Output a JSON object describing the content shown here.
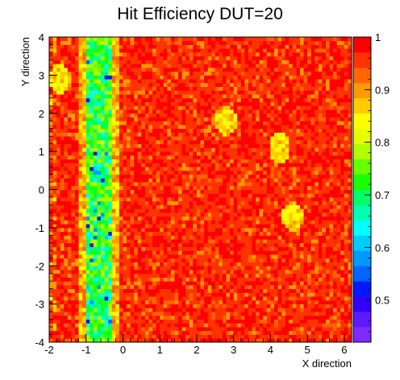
{
  "chart_data": {
    "type": "heatmap",
    "title": "Hit Efficiency DUT=20",
    "xlabel": "X direction",
    "ylabel": "Y direction",
    "xlim": [
      -2,
      6.2
    ],
    "ylim": [
      -4,
      4
    ],
    "x_ticks": [
      "-2",
      "-1",
      "0",
      "1",
      "2",
      "3",
      "4",
      "5",
      "6"
    ],
    "y_ticks": [
      "-4",
      "-3",
      "-2",
      "-1",
      "0",
      "1",
      "2",
      "3",
      "4"
    ],
    "zlim": [
      0.42,
      1.0
    ],
    "z_ticks": [
      "0.5",
      "0.6",
      "0.7",
      "0.8",
      "0.9",
      "1"
    ],
    "palette": [
      "#7f2aff",
      "#5b1aff",
      "#3200ff",
      "#0019ff",
      "#0066ff",
      "#0099ff",
      "#00ccff",
      "#00ffff",
      "#00ffb2",
      "#00ff66",
      "#19ff00",
      "#66ff00",
      "#b2ff00",
      "#e5ff00",
      "#ffff00",
      "#ffcc00",
      "#ff9900",
      "#ff6600",
      "#ff3300",
      "#ff0000"
    ],
    "bins": {
      "nx": 82,
      "ny": 80
    },
    "features": [
      {
        "label": "low-efficiency band",
        "x_center": -0.65,
        "x_halfwidth": 0.35,
        "value": 0.72
      },
      {
        "label": "spot",
        "x": 4.25,
        "y": 1.1,
        "value": 0.85
      },
      {
        "label": "spot",
        "x": 2.8,
        "y": 1.8,
        "value": 0.86
      },
      {
        "label": "spot",
        "x": 4.6,
        "y": -0.7,
        "value": 0.86
      },
      {
        "label": "spot",
        "x": -1.7,
        "y": 2.9,
        "value": 0.85
      }
    ],
    "background_value": 0.985,
    "grid": false
  }
}
